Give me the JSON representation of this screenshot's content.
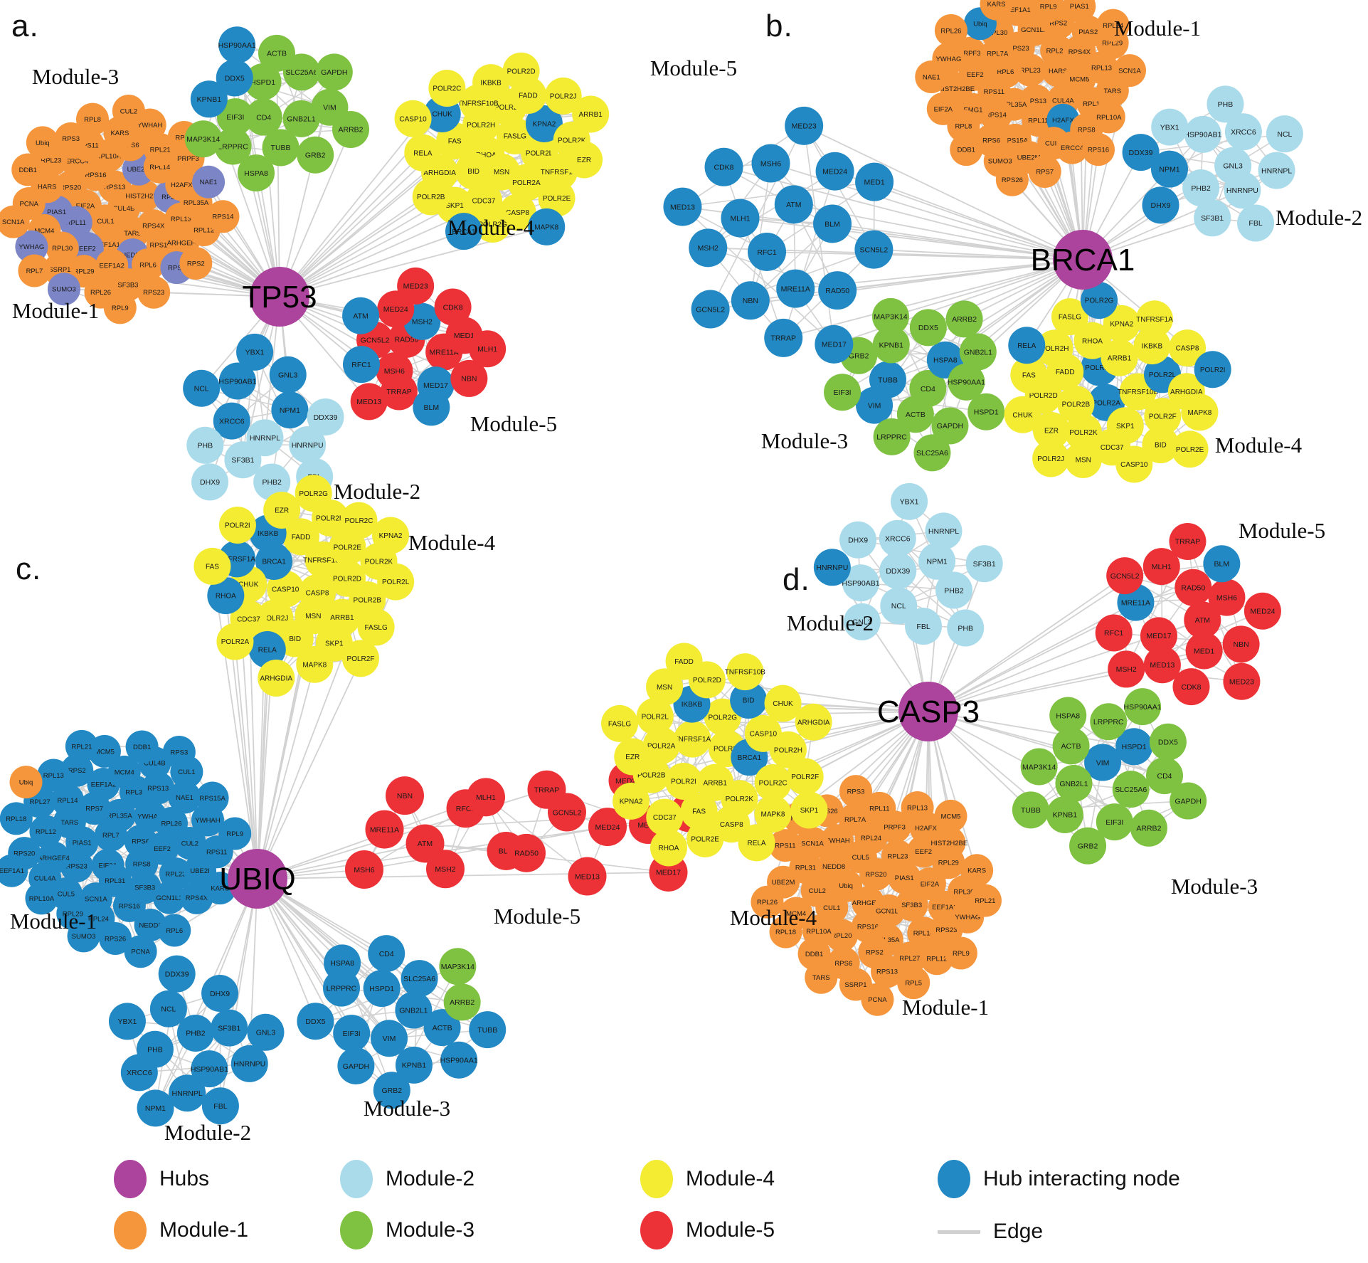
{
  "colors": {
    "hubNode": "#AC449E",
    "m1": "#F5953C",
    "m2": "#A9DBEB",
    "m3": "#7FC241",
    "m4": "#F3EC33",
    "m5": "#EC3237",
    "hub": "#2289C4",
    "peri": "#7C85C6",
    "edge": "#D2D2D2"
  },
  "figure": {
    "panels": [
      {
        "letter": "a.",
        "hub": {
          "label": "TP53"
        },
        "modules": [
          {
            "name": "Module-1",
            "color": "m1",
            "nodes": [
              "CUL4B",
              "CUL1",
              "RPS13",
              "TARS",
              "EIF2A",
              "HIST2H2BE",
              "EEF1A1",
              "RPS16",
              "RPS4X",
              "RPL11:peri",
              "UBE2M:peri",
              "NEDD8:peri",
              "RPS20",
              "RPL5:peri",
              "EEF2:peri",
              "RPL10A",
              "RPS15A",
              "PIAS1:peri",
              "RPL14",
              "EEF1A2",
              "ERCC4",
              "RPL13",
              "RPL30",
              "RPS6",
              "RPL6",
              "HARS",
              "H2AFX",
              "RPL29",
              "RPS11",
              "ARHGEF4",
              "MCM4",
              "RPL21",
              "SF3B3",
              "RPL23",
              "RPL35A",
              "SSRP1",
              "KARS",
              "RPS7:peri",
              "PCNA",
              "PRPF3",
              "RPL26",
              "RPS3",
              "RPL12",
              "YWHAG:peri",
              "YWHAH",
              "RPS23",
              "DDB1",
              "NAE1:peri",
              "SUMO3:peri",
              "RPL8",
              "RPS2",
              "SCN1A",
              "RPS8",
              "RPL9",
              "Ubiq",
              "RPS14",
              "RPL7",
              "CUL2"
            ]
          },
          {
            "name": "Module-2",
            "color": "m2",
            "nodes": [
              "HNRNPL",
              "XRCC6:hub",
              "NPM1:hub",
              "SF3B1",
              "HSP90AB1:hub",
              "HNRNPU",
              "PHB",
              "GNL3:hub",
              "PHB2",
              "NCL:hub",
              "DDX39",
              "DHX9",
              "YBX1:hub",
              "FBL"
            ]
          },
          {
            "name": "Module-3",
            "color": "m3",
            "nodes": [
              "CD4",
              "HSPD1",
              "GNB2L1",
              "EIF3I",
              "SLC25A6",
              "TUBB",
              "DDX5:hub",
              "VIM",
              "LRPPRC",
              "ACTB",
              "GRB2",
              "KPNB1:hub",
              "GAPDH",
              "HSPA8",
              "HSP90AA1:hub",
              "ARRB2",
              "MAP3K14"
            ]
          },
          {
            "name": "Module-4",
            "color": "m4",
            "nodes": [
              "RHOA",
              "FASLG",
              "MSN",
              "POLR2H",
              "POLR2L",
              "BID",
              "POLR2F",
              "POLR2A",
              "FAS",
              "KPNA2:hub",
              "CDC37",
              "TNFRSF10B",
              "TNFRSF1A",
              "ARHGDIA",
              "FADD",
              "CASP8",
              "CHUK:hub",
              "POLR2K",
              "SKP1",
              "IKBKB",
              "POLR2E",
              "RELA",
              "POLR2J",
              "POLR2G",
              "POLR2C",
              "EZR",
              "POLR2B",
              "POLR2D",
              "MAPK8:hub",
              "CASP10",
              "ARRB1",
              "BRCA1:hub"
            ]
          },
          {
            "name": "Module-5",
            "color": "m5",
            "nodes": [
              "RAD50",
              "MRE11A",
              "MSH6",
              "MSH2:hub",
              "MED17:hub",
              "GCN5L2",
              "MED1",
              "TRRAP",
              "MED24",
              "NBN",
              "RFC1:hub",
              "CDK8",
              "BLM:hub",
              "ATM:hub",
              "MLH1",
              "MED13",
              "MED23"
            ]
          }
        ]
      },
      {
        "letter": "b.",
        "hub": {
          "label": "BRCA1"
        },
        "modules": [
          {
            "name": "Module-1",
            "color": "m1",
            "nodes": [
              "RPL23",
              "RPS13",
              "RPL6",
              "HARS",
              "RPL35A",
              "RPS23",
              "CUL4A",
              "RPS11",
              "RPL21",
              "RPL11",
              "RPL7A",
              "MCM5",
              "RPS14",
              "GCN1L1",
              "H2AFX:hub",
              "EEF2",
              "RPS4X",
              "RPS15A",
              "RPL30",
              "RPL14",
              "EMG1",
              "RPS2",
              "CUL1",
              "PRPF3",
              "RPL13",
              "RPS6",
              "EEF1A1",
              "RPS8",
              "HIST2H2BE",
              "PIAS2",
              "UBE2M",
              "Ubiq:hub",
              "TARS",
              "RPL8",
              "RPL9",
              "ERCC4",
              "YWHAG",
              "RPL29",
              "SUMO3",
              "KARS",
              "RPL10A",
              "EIF2A",
              "PIAS1",
              "RPS7",
              "RPL26",
              "SCN1A",
              "DDB1",
              "RPS3",
              "RPS16",
              "NAE1",
              "RPL24",
              "RPS26"
            ]
          },
          {
            "name": "Module-2",
            "color": "m2",
            "nodes": [
              "GNL3",
              "PHB2",
              "HSP90AB1",
              "HNRNPU",
              "NPM1:hub",
              "XRCC6",
              "SF3B1",
              "YBX1",
              "HNRNPL",
              "DHX9:hub",
              "PHB",
              "FBL",
              "DDX39:hub",
              "NCL"
            ]
          },
          {
            "name": "Module-3",
            "color": "m3",
            "nodes": [
              "CD4",
              "TUBB:hub",
              "HSPA8:hub",
              "ACTB",
              "KPNB1",
              "HSP90AA1",
              "VIM:hub",
              "DDX5",
              "GAPDH",
              "GRB2",
              "GNB2L1",
              "LRPPRC",
              "MAP3K14",
              "HSPD1",
              "EIF3I",
              "ARRB2",
              "SLC25A6"
            ]
          },
          {
            "name": "Module-4",
            "color": "m4",
            "nodes": [
              "POLR2A:hub",
              "POLR2C:hub",
              "TNFRSF10B",
              "POLR2B",
              "ARRB1",
              "SKP1",
              "FADD",
              "POLR2L:hub",
              "POLR2K",
              "RHOA",
              "POLR2F",
              "POLR2D",
              "IKBKB",
              "CDC37",
              "POLR2H",
              "ARHGDIA",
              "EZR",
              "KPNA2",
              "BID",
              "FAS",
              "CASP8",
              "MSN",
              "FASLG",
              "MAPK8",
              "CHUK",
              "TNFRSF1A",
              "CASP10",
              "RELA:hub",
              "POLR2I:hub",
              "POLR2J",
              "POLR2G:hub",
              "POLR2E"
            ]
          },
          {
            "name": "Module-5",
            "color": "m5",
            "nodes": [
              "RFC1:hub",
              "ATM:hub",
              "MRE11A:hub",
              "MLH1:hub",
              "BLM:hub",
              "NBN:hub",
              "MSH6:hub",
              "RAD50:hub",
              "MSH2:hub",
              "MED24:hub",
              "TRRAP:hub",
              "CDK8:hub",
              "SCN5L2:hub",
              "GCN5L2:hub",
              "MED23:hub",
              "MED17:hub",
              "MED13:hub",
              "MED1:hub"
            ]
          }
        ]
      },
      {
        "letter": "c.",
        "hub": {
          "label": "UBIQ"
        },
        "modules": [
          {
            "name": "Module-1",
            "color": "hub",
            "nodes": [
              "RPL7",
              "RPS6",
              "EIF2A",
              "RPL35A",
              "RPS8",
              "PIAS1",
              "YWHAG",
              "RPL31",
              "RPS7",
              "EEF2",
              "RPS23",
              "RPL30",
              "SF3B3",
              "TARS",
              "RPL26",
              "SCN1A",
              "EEF1A2",
              "RPL23",
              "ARHGEF4",
              "RPS13",
              "RPS16",
              "RPL14",
              "CUL2",
              "CUL5",
              "MCM4",
              "GCN1L1",
              "RPL12",
              "NAE1",
              "RPL24",
              "RPS2",
              "UBE2I",
              "CUL4A",
              "CUL4B",
              "NEDD8",
              "RPL27",
              "YWHAH",
              "RPL29",
              "MCM5",
              "RPS4X",
              "RPS20",
              "CUL1",
              "RPS26",
              "RPL13",
              "RPS11",
              "RPL10A",
              "DDB1",
              "RPL6",
              "RPL18",
              "RPS15A",
              "SUMO3",
              "RPL21",
              "KARS",
              "EEF1A1",
              "RPS3",
              "PCNA",
              "Ubiq:m1",
              "RPL9"
            ]
          },
          {
            "name": "Module-2",
            "color": "hub",
            "nodes": [
              "PHB2",
              "HSP90AB1",
              "PHB",
              "SF3B1",
              "HNRNPL",
              "NCL",
              "HNRNPU",
              "XRCC6",
              "DHX9",
              "FBL",
              "YBX1",
              "GNL3",
              "NPM1",
              "DDX39"
            ]
          },
          {
            "name": "Module-3",
            "color": "m3",
            "nodes": [
              "GNB2L1:hub",
              "VIM:hub",
              "HSPD1:hub",
              "ACTB:hub",
              "EIF3I:hub",
              "SLC25A6:hub",
              "KPNB1:hub",
              "LRPPRC:hub",
              "ARRB2",
              "GAPDH:hub",
              "CD4:hub",
              "HSP90AA1:hub",
              "DDX5:hub",
              "MAP3K14",
              "GRB2:hub",
              "HSPA8:hub",
              "TUBB:hub"
            ]
          },
          {
            "name": "Module-4",
            "color": "m4",
            "nodes": [
              "CASP8",
              "CASP10",
              "TNFRSF10B",
              "MSN",
              "BRCA1:hub",
              "POLR2D",
              "POLR2J",
              "FADD",
              "ARRB1",
              "CHUK",
              "POLR2E",
              "BID",
              "IKBKB:hub",
              "POLR2B",
              "CDC37",
              "POLR2H",
              "SKP1",
              "TNFRSF1A:hub",
              "POLR2K",
              "RELA:hub",
              "EZR",
              "FASLG",
              "RHOA:hub",
              "POLR2C",
              "MAPK8",
              "POLR2I",
              "POLR2L",
              "POLR2A",
              "POLR2G",
              "POLR2F",
              "FAS",
              "KPNA2",
              "ARHGDIA"
            ]
          },
          {
            "name": "Module-5",
            "color": "m5",
            "nodes": [
              "MSH6",
              "MRE11A",
              "NBN",
              "ATM",
              "MSH2",
              "RFC1",
              "MLH1",
              "BLM",
              "RAD50",
              "TRRAP",
              "GCN5L2",
              "MED13",
              "MED24",
              "MED23",
              "MED1",
              "MED17",
              "CDK8"
            ]
          }
        ]
      },
      {
        "letter": "d.",
        "hub": {
          "label": "CASP3"
        },
        "modules": [
          {
            "name": "Module-1",
            "color": "m1",
            "nodes": [
              "ARHGEF4",
              "RPS20",
              "GCN1L1",
              "Ubiq",
              "PIAS1",
              "RPS16",
              "CUL5",
              "SF3B3",
              "CUL1",
              "RPL23",
              "RPL35A",
              "NEDD8",
              "EIF2A",
              "RPL20",
              "RPL24",
              "RPL14",
              "CUL2",
              "EEF2",
              "RPS2",
              "YWHAH",
              "EEF1A2",
              "RPL10A",
              "PRPF3",
              "RPL27",
              "RPL31",
              "RPL29",
              "RPS6",
              "RPL7A",
              "RPS23",
              "MCM4",
              "H2AFX",
              "RPS13",
              "SCN1A",
              "RPL30",
              "DDB1",
              "RPL11",
              "RPL12",
              "UBE2M",
              "HIST2H2BE",
              "SSRP1",
              "RPS26",
              "YWHAG",
              "RPL18",
              "RPL13",
              "RPL5",
              "RPS11",
              "KARS",
              "TARS",
              "RPS3",
              "RPL9",
              "RPL26",
              "MCM5",
              "PCNA",
              "RPS7",
              "RPL21"
            ]
          },
          {
            "name": "Module-2",
            "color": "m2",
            "nodes": [
              "DDX39",
              "NPM1",
              "NCL",
              "XRCC6",
              "PHB2",
              "HSP90AB1",
              "HNRNPL",
              "FBL",
              "DHX9",
              "SF3B1",
              "GNL3",
              "YBX1",
              "PHB",
              "HNRNPU:hub"
            ]
          },
          {
            "name": "Module-3",
            "color": "m3",
            "nodes": [
              "VIM:hub",
              "SLC25A6",
              "GNB2L1",
              "HSPD1:hub",
              "EIF3I",
              "ACTB",
              "CD4",
              "KPNB1",
              "LRPPRC",
              "ARRB2",
              "MAP3K14",
              "DDX5",
              "GRB2",
              "HSPA8",
              "GAPDH",
              "TUBB",
              "HSP90AA1"
            ]
          },
          {
            "name": "Module-4",
            "color": "m4",
            "nodes": [
              "POLR2J",
              "ARRB1",
              "TNFRSF1A",
              "BRCA1:hub",
              "POLR2I",
              "POLR2G",
              "POLR2K",
              "POLR2A",
              "CASP10",
              "FAS",
              "IKBKB:hub",
              "POLR2C",
              "POLR2B",
              "BID:hub",
              "CASP8",
              "POLR2L",
              "POLR2H",
              "CDC37",
              "POLR2D",
              "MAPK8",
              "EZR",
              "CHUK",
              "POLR2E",
              "MSN",
              "POLR2F",
              "KPNA2",
              "TNFRSF10B",
              "RELA",
              "FASLG",
              "ARHGDIA",
              "RHOA",
              "FADD",
              "SKP1"
            ]
          },
          {
            "name": "Module-5",
            "color": "m5",
            "nodes": [
              "ATM",
              "MED17",
              "RAD50",
              "MED1",
              "MRE11A:hub",
              "MSH6",
              "MED13",
              "MLH1",
              "NBN",
              "RFC1",
              "BLM:hub",
              "CDK8",
              "GCN5L2",
              "MED24",
              "MSH2",
              "TRRAP",
              "MED23"
            ]
          }
        ]
      }
    ]
  },
  "legend": {
    "items": [
      {
        "label": "Hubs",
        "color": "#AC449E"
      },
      {
        "label": "Module-1",
        "color": "#F5953C"
      },
      {
        "label": "Module-2",
        "color": "#A9DBEB"
      },
      {
        "label": "Module-3",
        "color": "#7FC241"
      },
      {
        "label": "Module-4",
        "color": "#F3EC33"
      },
      {
        "label": "Module-5",
        "color": "#EC3237"
      },
      {
        "label": "Hub interacting node",
        "color": "#2289C4"
      }
    ],
    "edge_label": "Edge"
  }
}
